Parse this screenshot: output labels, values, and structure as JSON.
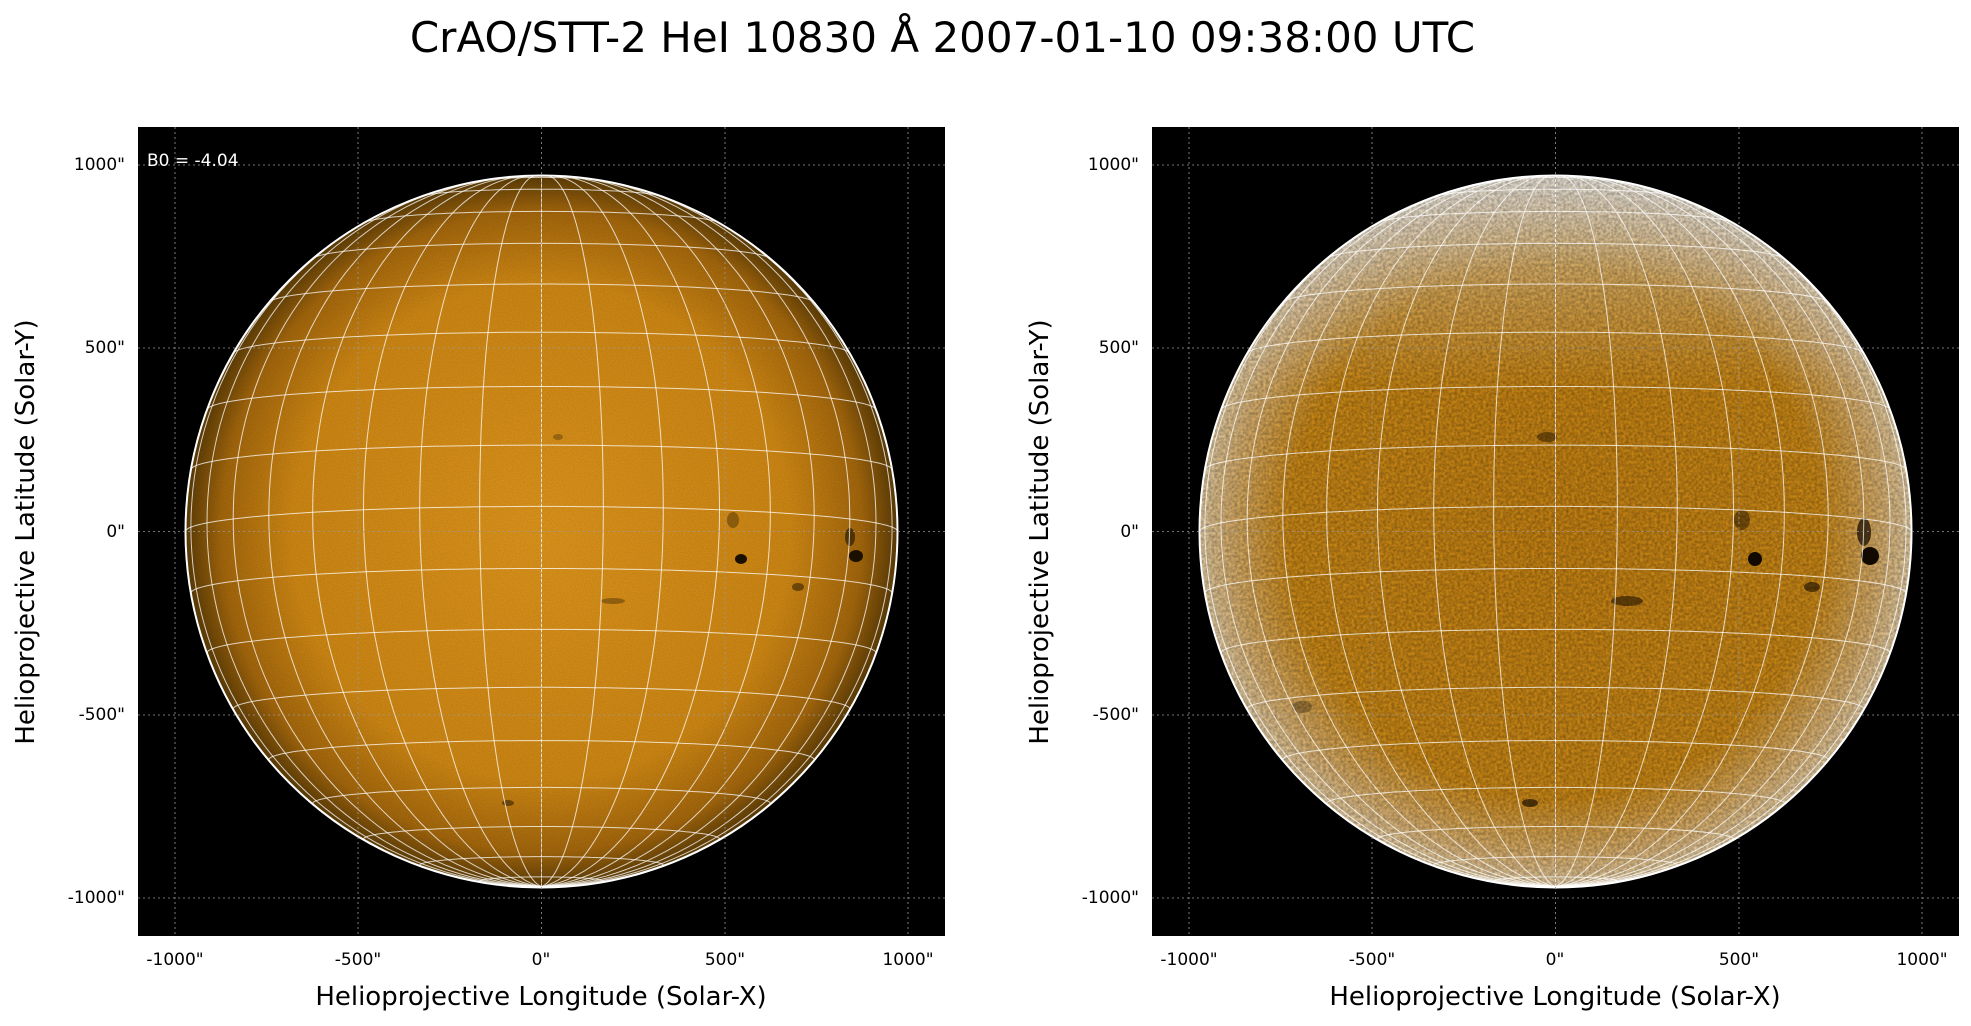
{
  "figure": {
    "title": "CrAO/STT-2 HeI 10830 Å 2007-01-10 09:38:00 UTC"
  },
  "axes": {
    "xlabel": "Helioprojective Longitude (Solar-X)",
    "ylabel": "Helioprojective Latitude (Solar-Y)",
    "xticks": [
      "-1000\"",
      "-500\"",
      "0\"",
      "500\"",
      "1000\""
    ],
    "yticks": [
      "1000\"",
      "500\"",
      "0\"",
      "-500\"",
      "-1000\""
    ]
  },
  "left_panel": {
    "annotation": "B0 = -4.04"
  },
  "colors": {
    "background": "#000000",
    "disk_base": "#d98f12",
    "disk_limb": "#5a3a06",
    "grid": "#ffffff",
    "sunspot": "#1a0f00"
  }
}
